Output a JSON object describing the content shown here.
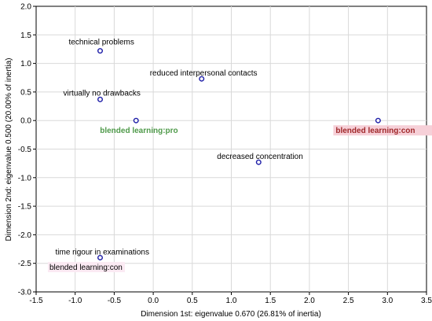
{
  "chart_data": {
    "type": "scatter",
    "title": "",
    "xlabel": "Dimension 1st: eigenvalue 0.670 (26.81% of inertia)",
    "ylabel": "Dimension 2nd: eigenvalue 0.500 (20.00% of inertia)",
    "xlim": [
      -1.5,
      3.5
    ],
    "ylim": [
      -3.0,
      2.0
    ],
    "x_ticks": [
      "-1.5",
      "-1.0",
      "-0.5",
      "0.0",
      "0.5",
      "1.0",
      "1.5",
      "2.0",
      "2.5",
      "3.0",
      "3.5"
    ],
    "y_ticks": [
      "2.0",
      "1.5",
      "1.0",
      "0.5",
      "0.0",
      "-0.5",
      "-1.0",
      "-1.5",
      "-2.0",
      "-2.5",
      "-3.0"
    ],
    "grid": true,
    "points": [
      {
        "label": "technical problems",
        "x": -0.68,
        "y": 1.22
      },
      {
        "label": "reduced interpersonal contacts",
        "x": 0.62,
        "y": 0.73
      },
      {
        "label": "virtually no drawbacks",
        "x": -0.68,
        "y": 0.37
      },
      {
        "label": "decreased concentration",
        "x": 1.35,
        "y": -0.73
      },
      {
        "label": "time rigour in examinations",
        "x": -0.68,
        "y": -2.4
      },
      {
        "label": "blended learning:pro",
        "x": -0.22,
        "y": 0.0
      },
      {
        "label": "blended learning:con",
        "x": 2.88,
        "y": 0.0
      }
    ],
    "category_colors": {
      "pro_text": "#4f9a4a",
      "con_text": "#a0282a",
      "con_highlight": "#f6d0d8",
      "marker": "#1f1fa8",
      "grid": "#d9d9d9"
    }
  },
  "overlays": {
    "ghost_label": "blended learning:con"
  }
}
